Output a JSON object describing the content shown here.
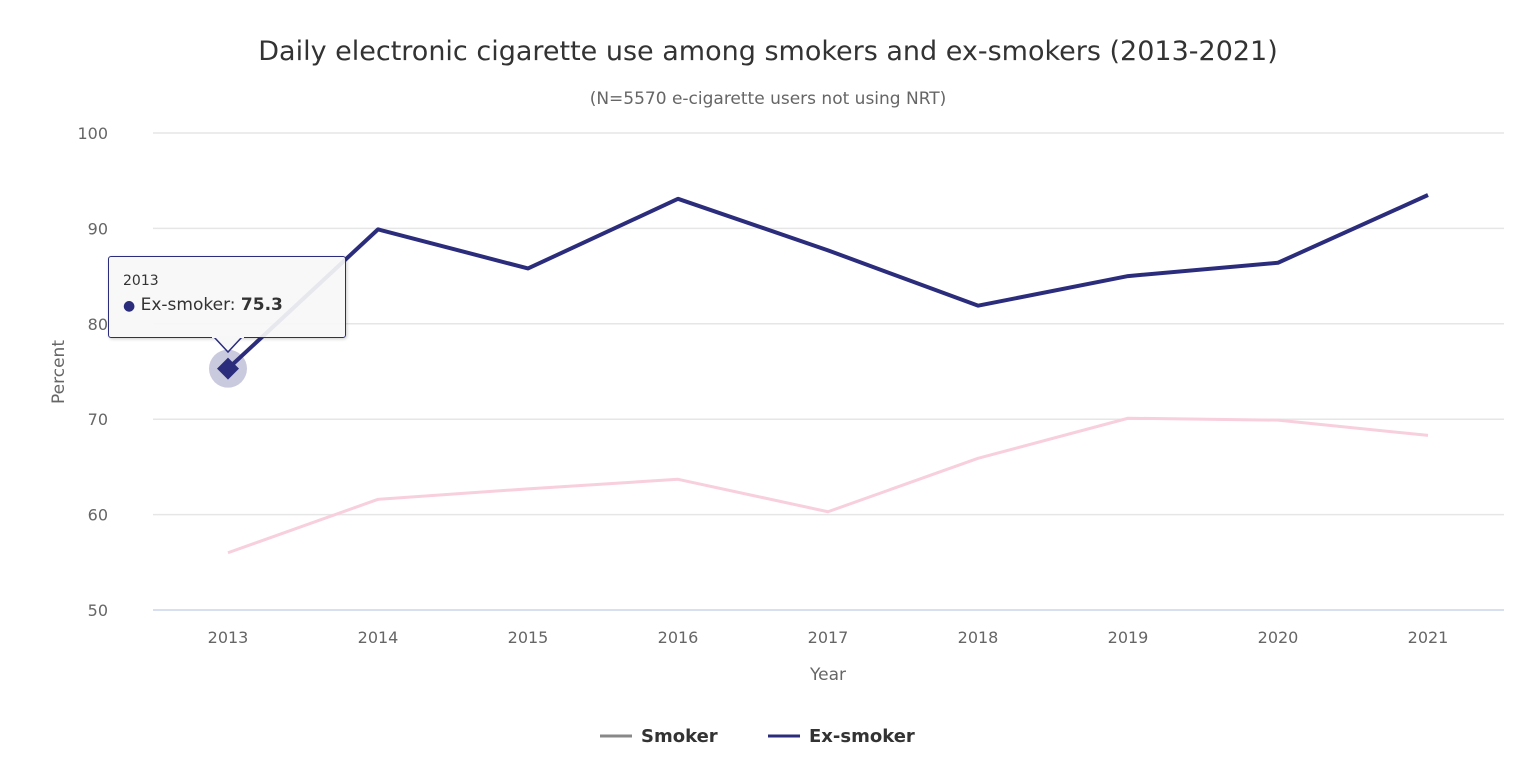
{
  "chart_data": {
    "type": "line",
    "title": "Daily electronic cigarette use among smokers and ex-smokers (2013-2021)",
    "subtitle": "(N=5570 e-cigarette users not using NRT)",
    "xlabel": "Year",
    "ylabel": "Percent",
    "categories": [
      "2013",
      "2014",
      "2015",
      "2016",
      "2017",
      "2018",
      "2019",
      "2020",
      "2021"
    ],
    "ylim": [
      50,
      100
    ],
    "yticks": [
      "50",
      "60",
      "70",
      "80",
      "90",
      "100"
    ],
    "grid": true,
    "legend_position": "bottom",
    "series": [
      {
        "name": "Smoker",
        "color": "#f8cfdc",
        "legend_color": "#888888",
        "values": [
          56.0,
          61.6,
          62.7,
          63.7,
          60.3,
          65.9,
          70.1,
          69.9,
          68.3
        ]
      },
      {
        "name": "Ex-smoker",
        "color": "#2b2d7c",
        "legend_color": "#2b2d7c",
        "values": [
          75.3,
          89.9,
          85.8,
          93.1,
          87.7,
          81.9,
          85.0,
          86.4,
          93.5
        ]
      }
    ]
  },
  "tooltip": {
    "header": "2013",
    "series": "Ex-smoker:",
    "value": "75.3"
  }
}
